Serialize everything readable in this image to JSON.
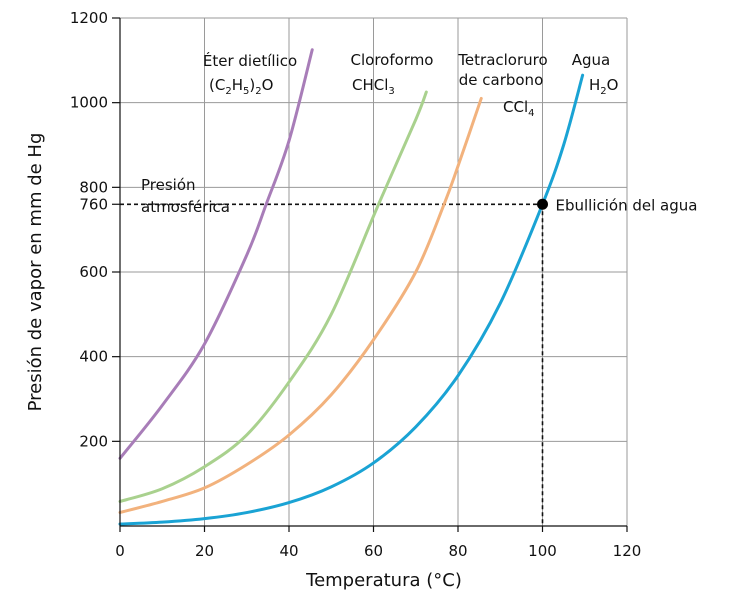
{
  "chart_data": {
    "type": "line",
    "xlabel": "Temperatura (°C)",
    "ylabel": "Presión de vapor en mm de Hg",
    "xlim": [
      0,
      120
    ],
    "ylim": [
      0,
      1200
    ],
    "x_ticks": [
      "0",
      "20",
      "40",
      "60",
      "80",
      "100",
      "120"
    ],
    "y_ticks": [
      "200",
      "400",
      "600",
      "760",
      "800",
      "1000",
      "1200"
    ],
    "grid": true,
    "series": [
      {
        "name": "Éter dietílico",
        "formula": "(C2H5)2O",
        "color": "#a87db8",
        "x": [
          0,
          10,
          20,
          30,
          34.6,
          40,
          45.5
        ],
        "y": [
          160,
          285,
          430,
          640,
          760,
          910,
          1125
        ]
      },
      {
        "name": "Cloroformo",
        "formula": "CHCl3",
        "color": "#a9d18e",
        "x": [
          0,
          10,
          20,
          30,
          40,
          50,
          61.2,
          70,
          72.5
        ],
        "y": [
          58,
          88,
          140,
          215,
          340,
          500,
          760,
          960,
          1025
        ]
      },
      {
        "name": "Tetracloruro de carbono",
        "formula": "CCl4",
        "color": "#f2b27d",
        "x": [
          0,
          10,
          20,
          30,
          40,
          50,
          60,
          70,
          76.7,
          80,
          85.5
        ],
        "y": [
          32,
          58,
          90,
          145,
          215,
          310,
          440,
          600,
          760,
          850,
          1010
        ]
      },
      {
        "name": "Agua",
        "formula": "H2O",
        "color": "#1aa3d4",
        "x": [
          0,
          10,
          20,
          30,
          40,
          50,
          60,
          70,
          80,
          90,
          100,
          105,
          109.5
        ],
        "y": [
          4.6,
          9.2,
          17.5,
          31.8,
          55.3,
          92.5,
          149,
          234,
          355,
          526,
          760,
          900,
          1065
        ]
      }
    ],
    "reference": {
      "label_line1": "Presión",
      "label_line2": "atmosférica",
      "y": 760
    },
    "point": {
      "label": "Ebullición del agua",
      "x": 100,
      "y": 760
    }
  },
  "labels": {
    "ether": {
      "name": "Éter dietílico",
      "f1": "(C",
      "s1": "2",
      "f2": "H",
      "s2": "5",
      "f3": ")",
      "s3": "2",
      "f4": "O"
    },
    "chloroform": {
      "name": "Cloroformo",
      "f1": "CHCl",
      "s1": "3"
    },
    "ccl4": {
      "name1": "Tetracloruro",
      "name2": "de carbono",
      "f1": "CCl",
      "s1": "4"
    },
    "water": {
      "name": "Agua",
      "f1": "H",
      "s1": "2",
      "f2": "O"
    }
  }
}
